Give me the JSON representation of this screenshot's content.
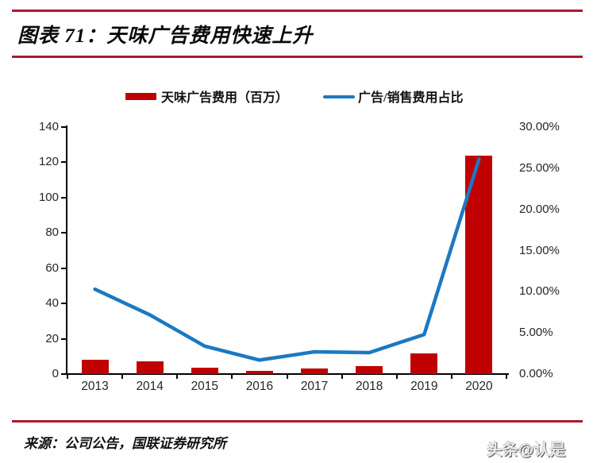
{
  "page": {
    "title": "图表 71：天味广告费用快速上升",
    "source": "来源：公司公告，国联证券研究所",
    "watermark": "头条@认是"
  },
  "colors": {
    "rule_red": "#AB1A30",
    "bar_red": "#C00000",
    "line_blue": "#1B79C2",
    "axis_black": "#000000",
    "tick_text": "#262626"
  },
  "legend": [
    {
      "label": "天味广告费用（百万）",
      "marker": "bar"
    },
    {
      "label": "广告/销售费用占比",
      "marker": "line"
    }
  ],
  "chart_data": {
    "type": "bar",
    "subtype": "bar+line combo, dual axis",
    "title": "天味广告费用快速上升",
    "categories": [
      "2013",
      "2014",
      "2015",
      "2016",
      "2017",
      "2018",
      "2019",
      "2020"
    ],
    "series": [
      {
        "name": "天味广告费用（百万）",
        "type": "bar",
        "axis": "left",
        "values": [
          8,
          7,
          3.5,
          1.6,
          3.3,
          4.3,
          11.5,
          124
        ]
      },
      {
        "name": "广告/销售费用占比",
        "type": "line",
        "axis": "right",
        "unit": "%",
        "values": [
          10.3,
          7.2,
          3.4,
          1.7,
          2.7,
          2.6,
          4.8,
          26.1
        ]
      }
    ],
    "left_axis": {
      "min": 0,
      "max": 140,
      "step": 20,
      "tick_labels": [
        "0",
        "20",
        "40",
        "60",
        "80",
        "100",
        "120",
        "140"
      ]
    },
    "right_axis": {
      "min": 0,
      "max": 30,
      "step": 5,
      "tick_labels": [
        "0.00%",
        "5.00%",
        "10.00%",
        "15.00%",
        "20.00%",
        "25.00%",
        "30.00%"
      ]
    },
    "grid": false,
    "legend_position": "top"
  }
}
